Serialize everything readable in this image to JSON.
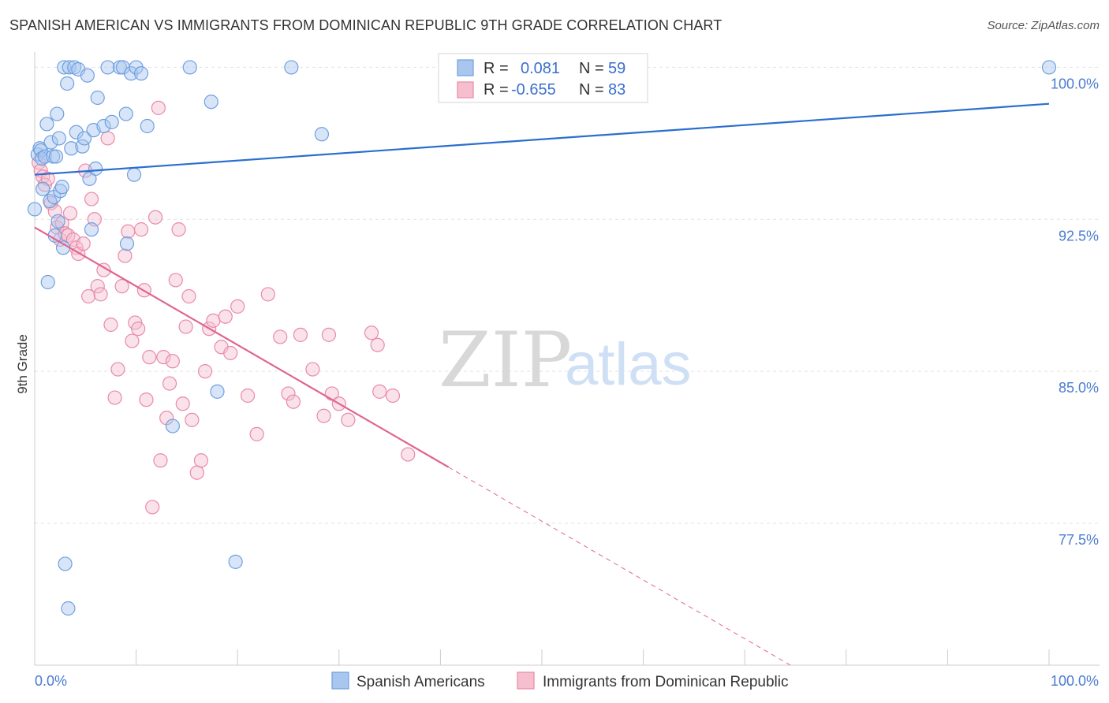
{
  "title": "SPANISH AMERICAN VS IMMIGRANTS FROM DOMINICAN REPUBLIC 9TH GRADE CORRELATION CHART",
  "source": "Source: ZipAtlas.com",
  "colors": {
    "blue": "#6fa0e0",
    "blue_fill": "#a9c6ef",
    "blue_line": "#2a6fcf",
    "pink": "#e98aa8",
    "pink_fill": "#f5bfd0",
    "pink_line": "#e06690",
    "grid": "#e3e3e3",
    "axis_text": "#4a7bd0"
  },
  "legend": {
    "row1": {
      "r_label": "R =",
      "r_value": "0.081",
      "n_label": "N =",
      "n_value": "59"
    },
    "row2": {
      "r_label": "R =",
      "r_value": "-0.655",
      "n_label": "N =",
      "n_value": "83"
    }
  },
  "watermark": {
    "zip": "ZIP",
    "atlas": "atlas"
  },
  "chart_data": {
    "type": "scatter",
    "title": "SPANISH AMERICAN VS IMMIGRANTS FROM DOMINICAN REPUBLIC 9TH GRADE CORRELATION CHART",
    "xlabel": "",
    "ylabel": "9th Grade",
    "xlim": [
      0,
      100
    ],
    "ylim": [
      70.5,
      100.6
    ],
    "x_tick_labels": [
      "0.0%",
      "100.0%"
    ],
    "y_ticks": [
      100.0,
      92.5,
      85.0,
      77.5
    ],
    "y_tick_labels": [
      "100.0%",
      "92.5%",
      "85.0%",
      "77.5%"
    ],
    "grid": true,
    "legend_position": "bottom",
    "series": [
      {
        "name": "Spanish Americans",
        "color": "blue",
        "R": 0.081,
        "N": 59,
        "trend": {
          "x0": 0,
          "y0": 94.7,
          "x1": 100,
          "y1": 98.2,
          "solid_until": 100
        },
        "points": [
          [
            0.0,
            93.0
          ],
          [
            0.3,
            95.7
          ],
          [
            0.5,
            96.0
          ],
          [
            0.6,
            95.9
          ],
          [
            0.7,
            95.5
          ],
          [
            0.8,
            94.0
          ],
          [
            1.0,
            95.6
          ],
          [
            1.2,
            97.2
          ],
          [
            1.3,
            89.4
          ],
          [
            1.5,
            93.4
          ],
          [
            1.6,
            96.3
          ],
          [
            1.8,
            95.6
          ],
          [
            1.9,
            93.6
          ],
          [
            2.0,
            91.7
          ],
          [
            2.1,
            95.6
          ],
          [
            2.2,
            97.7
          ],
          [
            2.3,
            92.4
          ],
          [
            2.4,
            96.5
          ],
          [
            2.5,
            93.9
          ],
          [
            2.7,
            94.1
          ],
          [
            2.8,
            91.1
          ],
          [
            2.9,
            100.0
          ],
          [
            3.0,
            75.5
          ],
          [
            3.2,
            99.2
          ],
          [
            3.3,
            73.3
          ],
          [
            3.4,
            100.0
          ],
          [
            3.6,
            96.0
          ],
          [
            3.9,
            100.0
          ],
          [
            4.1,
            96.8
          ],
          [
            4.3,
            99.9
          ],
          [
            4.7,
            96.1
          ],
          [
            4.9,
            96.5
          ],
          [
            5.2,
            99.6
          ],
          [
            5.4,
            94.5
          ],
          [
            5.6,
            92.0
          ],
          [
            5.8,
            96.9
          ],
          [
            6.0,
            95.0
          ],
          [
            6.2,
            98.5
          ],
          [
            6.8,
            97.1
          ],
          [
            7.2,
            100.0
          ],
          [
            7.6,
            97.3
          ],
          [
            8.4,
            100.0
          ],
          [
            8.7,
            100.0
          ],
          [
            9.0,
            97.7
          ],
          [
            9.1,
            91.3
          ],
          [
            9.5,
            99.7
          ],
          [
            9.8,
            94.7
          ],
          [
            10.0,
            100.0
          ],
          [
            10.5,
            99.7
          ],
          [
            11.1,
            97.1
          ],
          [
            13.6,
            82.3
          ],
          [
            15.3,
            100.0
          ],
          [
            17.4,
            98.3
          ],
          [
            18.0,
            84.0
          ],
          [
            19.8,
            75.6
          ],
          [
            25.3,
            100.0
          ],
          [
            28.3,
            96.7
          ],
          [
            100.0,
            100.0
          ]
        ]
      },
      {
        "name": "Immigrants from Dominican Republic",
        "color": "pink",
        "R": -0.655,
        "N": 83,
        "trend": {
          "x0": 0,
          "y0": 92.1,
          "x1": 74.5,
          "y1": 70.5,
          "solid_until": 40.8
        },
        "points": [
          [
            0.4,
            95.3
          ],
          [
            0.6,
            94.9
          ],
          [
            0.8,
            94.6
          ],
          [
            1.0,
            94.2
          ],
          [
            1.3,
            94.5
          ],
          [
            1.6,
            93.3
          ],
          [
            2.0,
            92.9
          ],
          [
            2.2,
            92.1
          ],
          [
            2.5,
            91.5
          ],
          [
            2.7,
            92.3
          ],
          [
            3.0,
            91.8
          ],
          [
            3.3,
            91.7
          ],
          [
            3.5,
            92.8
          ],
          [
            3.8,
            91.5
          ],
          [
            4.1,
            91.1
          ],
          [
            4.3,
            90.8
          ],
          [
            4.8,
            91.3
          ],
          [
            5.0,
            94.9
          ],
          [
            5.3,
            88.7
          ],
          [
            5.6,
            93.5
          ],
          [
            5.9,
            92.5
          ],
          [
            6.2,
            89.2
          ],
          [
            6.5,
            88.8
          ],
          [
            6.8,
            90.0
          ],
          [
            7.2,
            96.5
          ],
          [
            7.5,
            87.3
          ],
          [
            7.9,
            83.7
          ],
          [
            8.2,
            85.1
          ],
          [
            8.6,
            89.2
          ],
          [
            8.9,
            90.7
          ],
          [
            9.2,
            91.9
          ],
          [
            9.6,
            86.5
          ],
          [
            9.9,
            87.4
          ],
          [
            10.2,
            87.1
          ],
          [
            10.5,
            92.0
          ],
          [
            10.8,
            89.0
          ],
          [
            11.0,
            83.6
          ],
          [
            11.3,
            85.7
          ],
          [
            11.6,
            78.3
          ],
          [
            11.9,
            92.6
          ],
          [
            12.2,
            98.0
          ],
          [
            12.4,
            80.6
          ],
          [
            12.7,
            85.7
          ],
          [
            13.0,
            82.7
          ],
          [
            13.3,
            84.4
          ],
          [
            13.6,
            85.5
          ],
          [
            13.9,
            89.5
          ],
          [
            14.2,
            92.0
          ],
          [
            14.6,
            83.4
          ],
          [
            14.9,
            87.2
          ],
          [
            15.2,
            88.7
          ],
          [
            15.5,
            82.6
          ],
          [
            16.0,
            80.0
          ],
          [
            16.4,
            80.6
          ],
          [
            16.8,
            85.0
          ],
          [
            17.2,
            87.1
          ],
          [
            17.6,
            87.5
          ],
          [
            18.4,
            86.2
          ],
          [
            18.8,
            87.7
          ],
          [
            19.3,
            85.9
          ],
          [
            20.0,
            88.2
          ],
          [
            21.0,
            83.8
          ],
          [
            21.9,
            81.9
          ],
          [
            23.0,
            88.8
          ],
          [
            24.2,
            86.7
          ],
          [
            25.0,
            83.9
          ],
          [
            25.5,
            83.5
          ],
          [
            26.2,
            86.8
          ],
          [
            27.4,
            85.1
          ],
          [
            28.5,
            82.8
          ],
          [
            29.0,
            86.8
          ],
          [
            29.3,
            83.9
          ],
          [
            30.0,
            83.4
          ],
          [
            30.9,
            82.6
          ],
          [
            33.2,
            86.9
          ],
          [
            33.8,
            86.3
          ],
          [
            34.0,
            84.0
          ],
          [
            35.3,
            83.8
          ],
          [
            36.8,
            80.9
          ]
        ]
      }
    ]
  }
}
